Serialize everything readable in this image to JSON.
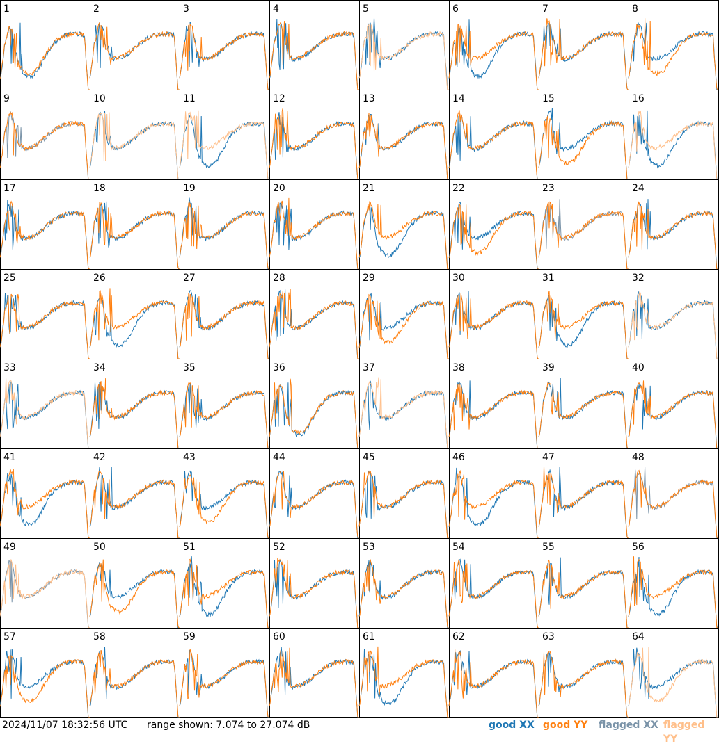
{
  "footer": {
    "timestamp": "2024/11/07 18:32:56 UTC",
    "range_text": "range shown: 7.074 to 27.074 dB"
  },
  "legend": [
    {
      "label": "good XX",
      "color": "#1f77b4"
    },
    {
      "label": "good YY",
      "color": "#ff7f0e"
    },
    {
      "label": "flagged XX",
      "color": "#7a93a8"
    },
    {
      "label": "flagged YY",
      "color": "#ffbf8a"
    }
  ],
  "chart_data": {
    "type": "line",
    "title": "",
    "ylim": [
      7.074,
      27.074
    ],
    "grid": {
      "rows": 8,
      "cols": 8
    },
    "tiles": [
      {
        "label": "1",
        "flagged_xx": false,
        "flagged_yy": false
      },
      {
        "label": "2",
        "flagged_xx": false,
        "flagged_yy": false
      },
      {
        "label": "3",
        "flagged_xx": false,
        "flagged_yy": false
      },
      {
        "label": "4",
        "flagged_xx": false,
        "flagged_yy": false
      },
      {
        "label": "5",
        "flagged_xx": false,
        "flagged_yy": true
      },
      {
        "label": "6",
        "flagged_xx": false,
        "flagged_yy": false
      },
      {
        "label": "7",
        "flagged_xx": false,
        "flagged_yy": false
      },
      {
        "label": "8",
        "flagged_xx": false,
        "flagged_yy": false
      },
      {
        "label": "9",
        "flagged_xx": true,
        "flagged_yy": false
      },
      {
        "label": "10",
        "flagged_xx": false,
        "flagged_yy": true
      },
      {
        "label": "11",
        "flagged_xx": false,
        "flagged_yy": true
      },
      {
        "label": "12",
        "flagged_xx": false,
        "flagged_yy": false
      },
      {
        "label": "13",
        "flagged_xx": false,
        "flagged_yy": false
      },
      {
        "label": "14",
        "flagged_xx": false,
        "flagged_yy": false
      },
      {
        "label": "15",
        "flagged_xx": false,
        "flagged_yy": false
      },
      {
        "label": "16",
        "flagged_xx": false,
        "flagged_yy": true
      },
      {
        "label": "17",
        "flagged_xx": false,
        "flagged_yy": false
      },
      {
        "label": "18",
        "flagged_xx": false,
        "flagged_yy": false
      },
      {
        "label": "19",
        "flagged_xx": false,
        "flagged_yy": false
      },
      {
        "label": "20",
        "flagged_xx": false,
        "flagged_yy": false
      },
      {
        "label": "21",
        "flagged_xx": false,
        "flagged_yy": false
      },
      {
        "label": "22",
        "flagged_xx": false,
        "flagged_yy": false
      },
      {
        "label": "23",
        "flagged_xx": true,
        "flagged_yy": false
      },
      {
        "label": "24",
        "flagged_xx": false,
        "flagged_yy": false
      },
      {
        "label": "25",
        "flagged_xx": false,
        "flagged_yy": false
      },
      {
        "label": "26",
        "flagged_xx": false,
        "flagged_yy": false
      },
      {
        "label": "27",
        "flagged_xx": false,
        "flagged_yy": false
      },
      {
        "label": "28",
        "flagged_xx": false,
        "flagged_yy": false
      },
      {
        "label": "29",
        "flagged_xx": false,
        "flagged_yy": false
      },
      {
        "label": "30",
        "flagged_xx": false,
        "flagged_yy": false
      },
      {
        "label": "31",
        "flagged_xx": false,
        "flagged_yy": false
      },
      {
        "label": "32",
        "flagged_xx": false,
        "flagged_yy": true
      },
      {
        "label": "33",
        "flagged_xx": false,
        "flagged_yy": true
      },
      {
        "label": "34",
        "flagged_xx": false,
        "flagged_yy": false
      },
      {
        "label": "35",
        "flagged_xx": false,
        "flagged_yy": false
      },
      {
        "label": "36",
        "flagged_xx": false,
        "flagged_yy": false
      },
      {
        "label": "37",
        "flagged_xx": false,
        "flagged_yy": true
      },
      {
        "label": "38",
        "flagged_xx": false,
        "flagged_yy": false
      },
      {
        "label": "39",
        "flagged_xx": false,
        "flagged_yy": false
      },
      {
        "label": "40",
        "flagged_xx": false,
        "flagged_yy": false
      },
      {
        "label": "41",
        "flagged_xx": false,
        "flagged_yy": false
      },
      {
        "label": "42",
        "flagged_xx": false,
        "flagged_yy": false
      },
      {
        "label": "43",
        "flagged_xx": false,
        "flagged_yy": false
      },
      {
        "label": "44",
        "flagged_xx": false,
        "flagged_yy": false
      },
      {
        "label": "45",
        "flagged_xx": false,
        "flagged_yy": false
      },
      {
        "label": "46",
        "flagged_xx": false,
        "flagged_yy": false
      },
      {
        "label": "47",
        "flagged_xx": false,
        "flagged_yy": false
      },
      {
        "label": "48",
        "flagged_xx": true,
        "flagged_yy": false
      },
      {
        "label": "49",
        "flagged_xx": true,
        "flagged_yy": true
      },
      {
        "label": "50",
        "flagged_xx": false,
        "flagged_yy": false
      },
      {
        "label": "51",
        "flagged_xx": false,
        "flagged_yy": false
      },
      {
        "label": "52",
        "flagged_xx": false,
        "flagged_yy": false
      },
      {
        "label": "53",
        "flagged_xx": false,
        "flagged_yy": false
      },
      {
        "label": "54",
        "flagged_xx": false,
        "flagged_yy": false
      },
      {
        "label": "55",
        "flagged_xx": false,
        "flagged_yy": false
      },
      {
        "label": "56",
        "flagged_xx": false,
        "flagged_yy": false
      },
      {
        "label": "57",
        "flagged_xx": false,
        "flagged_yy": false
      },
      {
        "label": "58",
        "flagged_xx": false,
        "flagged_yy": false
      },
      {
        "label": "59",
        "flagged_xx": false,
        "flagged_yy": false
      },
      {
        "label": "60",
        "flagged_xx": false,
        "flagged_yy": false
      },
      {
        "label": "61",
        "flagged_xx": false,
        "flagged_yy": false
      },
      {
        "label": "62",
        "flagged_xx": false,
        "flagged_yy": false
      },
      {
        "label": "63",
        "flagged_xx": false,
        "flagged_yy": false
      },
      {
        "label": "64",
        "flagged_xx": false,
        "flagged_yy": true
      }
    ]
  }
}
